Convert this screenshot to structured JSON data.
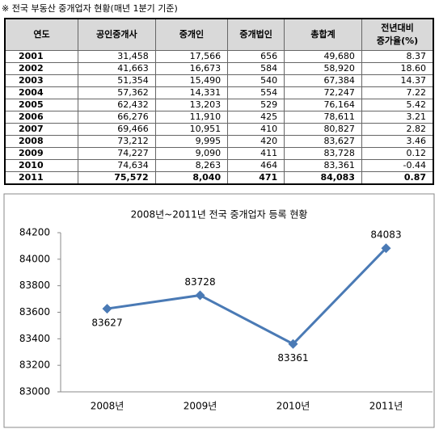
{
  "caption": "※ 전국 부동산 중개업자 현황(매년 1분기 기준)",
  "table": {
    "headers": [
      "연도",
      "공인중개사",
      "중개인",
      "중개법인",
      "총합계",
      [
        "전년대비",
        "증가율(%)"
      ]
    ],
    "rows": [
      [
        "2001",
        "31,458",
        "17,566",
        "656",
        "49,680",
        "8.37"
      ],
      [
        "2002",
        "41,663",
        "16,673",
        "584",
        "58,920",
        "18.60"
      ],
      [
        "2003",
        "51,354",
        "15,490",
        "540",
        "67,384",
        "14.37"
      ],
      [
        "2004",
        "57,362",
        "14,331",
        "554",
        "72,247",
        "7.22"
      ],
      [
        "2005",
        "62,432",
        "13,203",
        "529",
        "76,164",
        "5.42"
      ],
      [
        "2006",
        "66,276",
        "11,910",
        "425",
        "78,611",
        "3.21"
      ],
      [
        "2007",
        "69,466",
        "10,951",
        "410",
        "80,827",
        "2.82"
      ],
      [
        "2008",
        "73,212",
        "9,995",
        "420",
        "83,627",
        "3.46"
      ],
      [
        "2009",
        "74,227",
        "9,090",
        "411",
        "83,728",
        "0.12"
      ],
      [
        "2010",
        "74,634",
        "8,263",
        "464",
        "83,361",
        "-0.44"
      ],
      [
        "2011",
        "75,572",
        "8,040",
        "471",
        "84,083",
        "0.87"
      ]
    ]
  },
  "chart_data": {
    "type": "line",
    "title": "2008년~2011년 전국 중개업자 등록 현황",
    "categories": [
      "2008년",
      "2009년",
      "2010년",
      "2011년"
    ],
    "values": [
      83627,
      83728,
      83361,
      84083
    ],
    "color": "#4a7ab5",
    "ylim": [
      83000,
      84200
    ],
    "yticks": [
      83000,
      83200,
      83400,
      83600,
      83800,
      84000,
      84200
    ],
    "data_labels": true
  }
}
